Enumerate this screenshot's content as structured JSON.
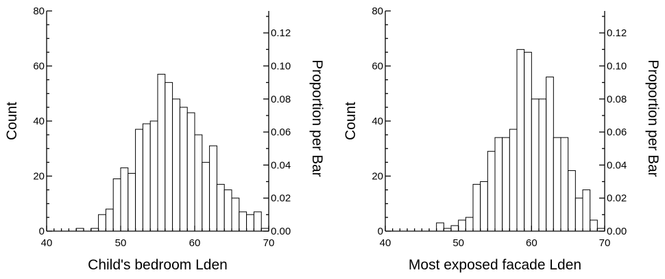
{
  "chart_data": [
    {
      "type": "bar",
      "xlabel": "Child's bedroom Lden",
      "ylabel": "Count",
      "y2label": "Proportion per Bar",
      "xlim": [
        40,
        70
      ],
      "ylim": [
        0,
        80
      ],
      "y2lim": [
        0,
        0.1333
      ],
      "xticks": [
        "40",
        "50",
        "60",
        "70"
      ],
      "yticks": [
        "0",
        "20",
        "40",
        "60",
        "80"
      ],
      "y2ticks": [
        "0.00",
        "0.02",
        "0.04",
        "0.06",
        "0.08",
        "0.10",
        "0.12"
      ],
      "bin_width": 1,
      "bin_starts": [
        44,
        45,
        46,
        47,
        48,
        49,
        50,
        51,
        52,
        53,
        54,
        55,
        56,
        57,
        58,
        59,
        60,
        61,
        62,
        63,
        64,
        65,
        66,
        67,
        68,
        69
      ],
      "values": [
        1,
        0,
        1,
        6,
        8,
        19,
        23,
        21,
        37,
        39,
        40,
        57,
        54,
        48,
        45,
        43,
        35,
        25,
        31,
        17,
        15,
        12,
        7,
        6,
        7,
        0
      ],
      "extra_bars": [
        {
          "start": 69,
          "value": 1
        }
      ]
    },
    {
      "type": "bar",
      "xlabel": "Most exposed facade Lden",
      "ylabel": "Count",
      "y2label": "Proportion per Bar",
      "xlim": [
        40,
        70
      ],
      "ylim": [
        0,
        80
      ],
      "y2lim": [
        0,
        0.1333
      ],
      "xticks": [
        "40",
        "50",
        "60",
        "70"
      ],
      "yticks": [
        "0",
        "20",
        "40",
        "60",
        "80"
      ],
      "y2ticks": [
        "0.00",
        "0.02",
        "0.04",
        "0.06",
        "0.08",
        "0.10",
        "0.12"
      ],
      "bin_width": 1,
      "bin_starts": [
        47,
        48,
        49,
        50,
        51,
        52,
        53,
        54,
        55,
        56,
        57,
        58,
        59,
        60,
        61,
        62,
        63,
        64,
        65,
        66,
        67,
        68,
        69
      ],
      "values": [
        3,
        1,
        2,
        4,
        5,
        17,
        18,
        29,
        34,
        34,
        37,
        66,
        65,
        48,
        48,
        56,
        34,
        34,
        22,
        12,
        15,
        4,
        1
      ]
    }
  ]
}
